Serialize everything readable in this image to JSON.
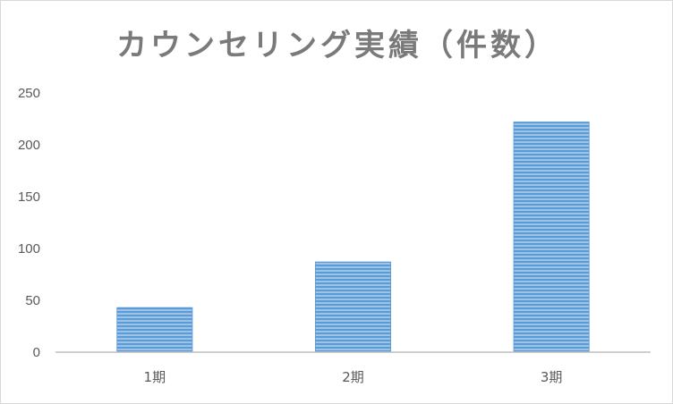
{
  "chart_data": {
    "type": "bar",
    "title": "カウンセリング実績（件数）",
    "categories": [
      "1期",
      "2期",
      "3期"
    ],
    "values": [
      43,
      87,
      222
    ],
    "ylim": [
      0,
      250
    ],
    "yticks": [
      0,
      50,
      100,
      150,
      200,
      250
    ],
    "grid": false,
    "legend": "none",
    "bar_color": "#5b9bd5"
  }
}
